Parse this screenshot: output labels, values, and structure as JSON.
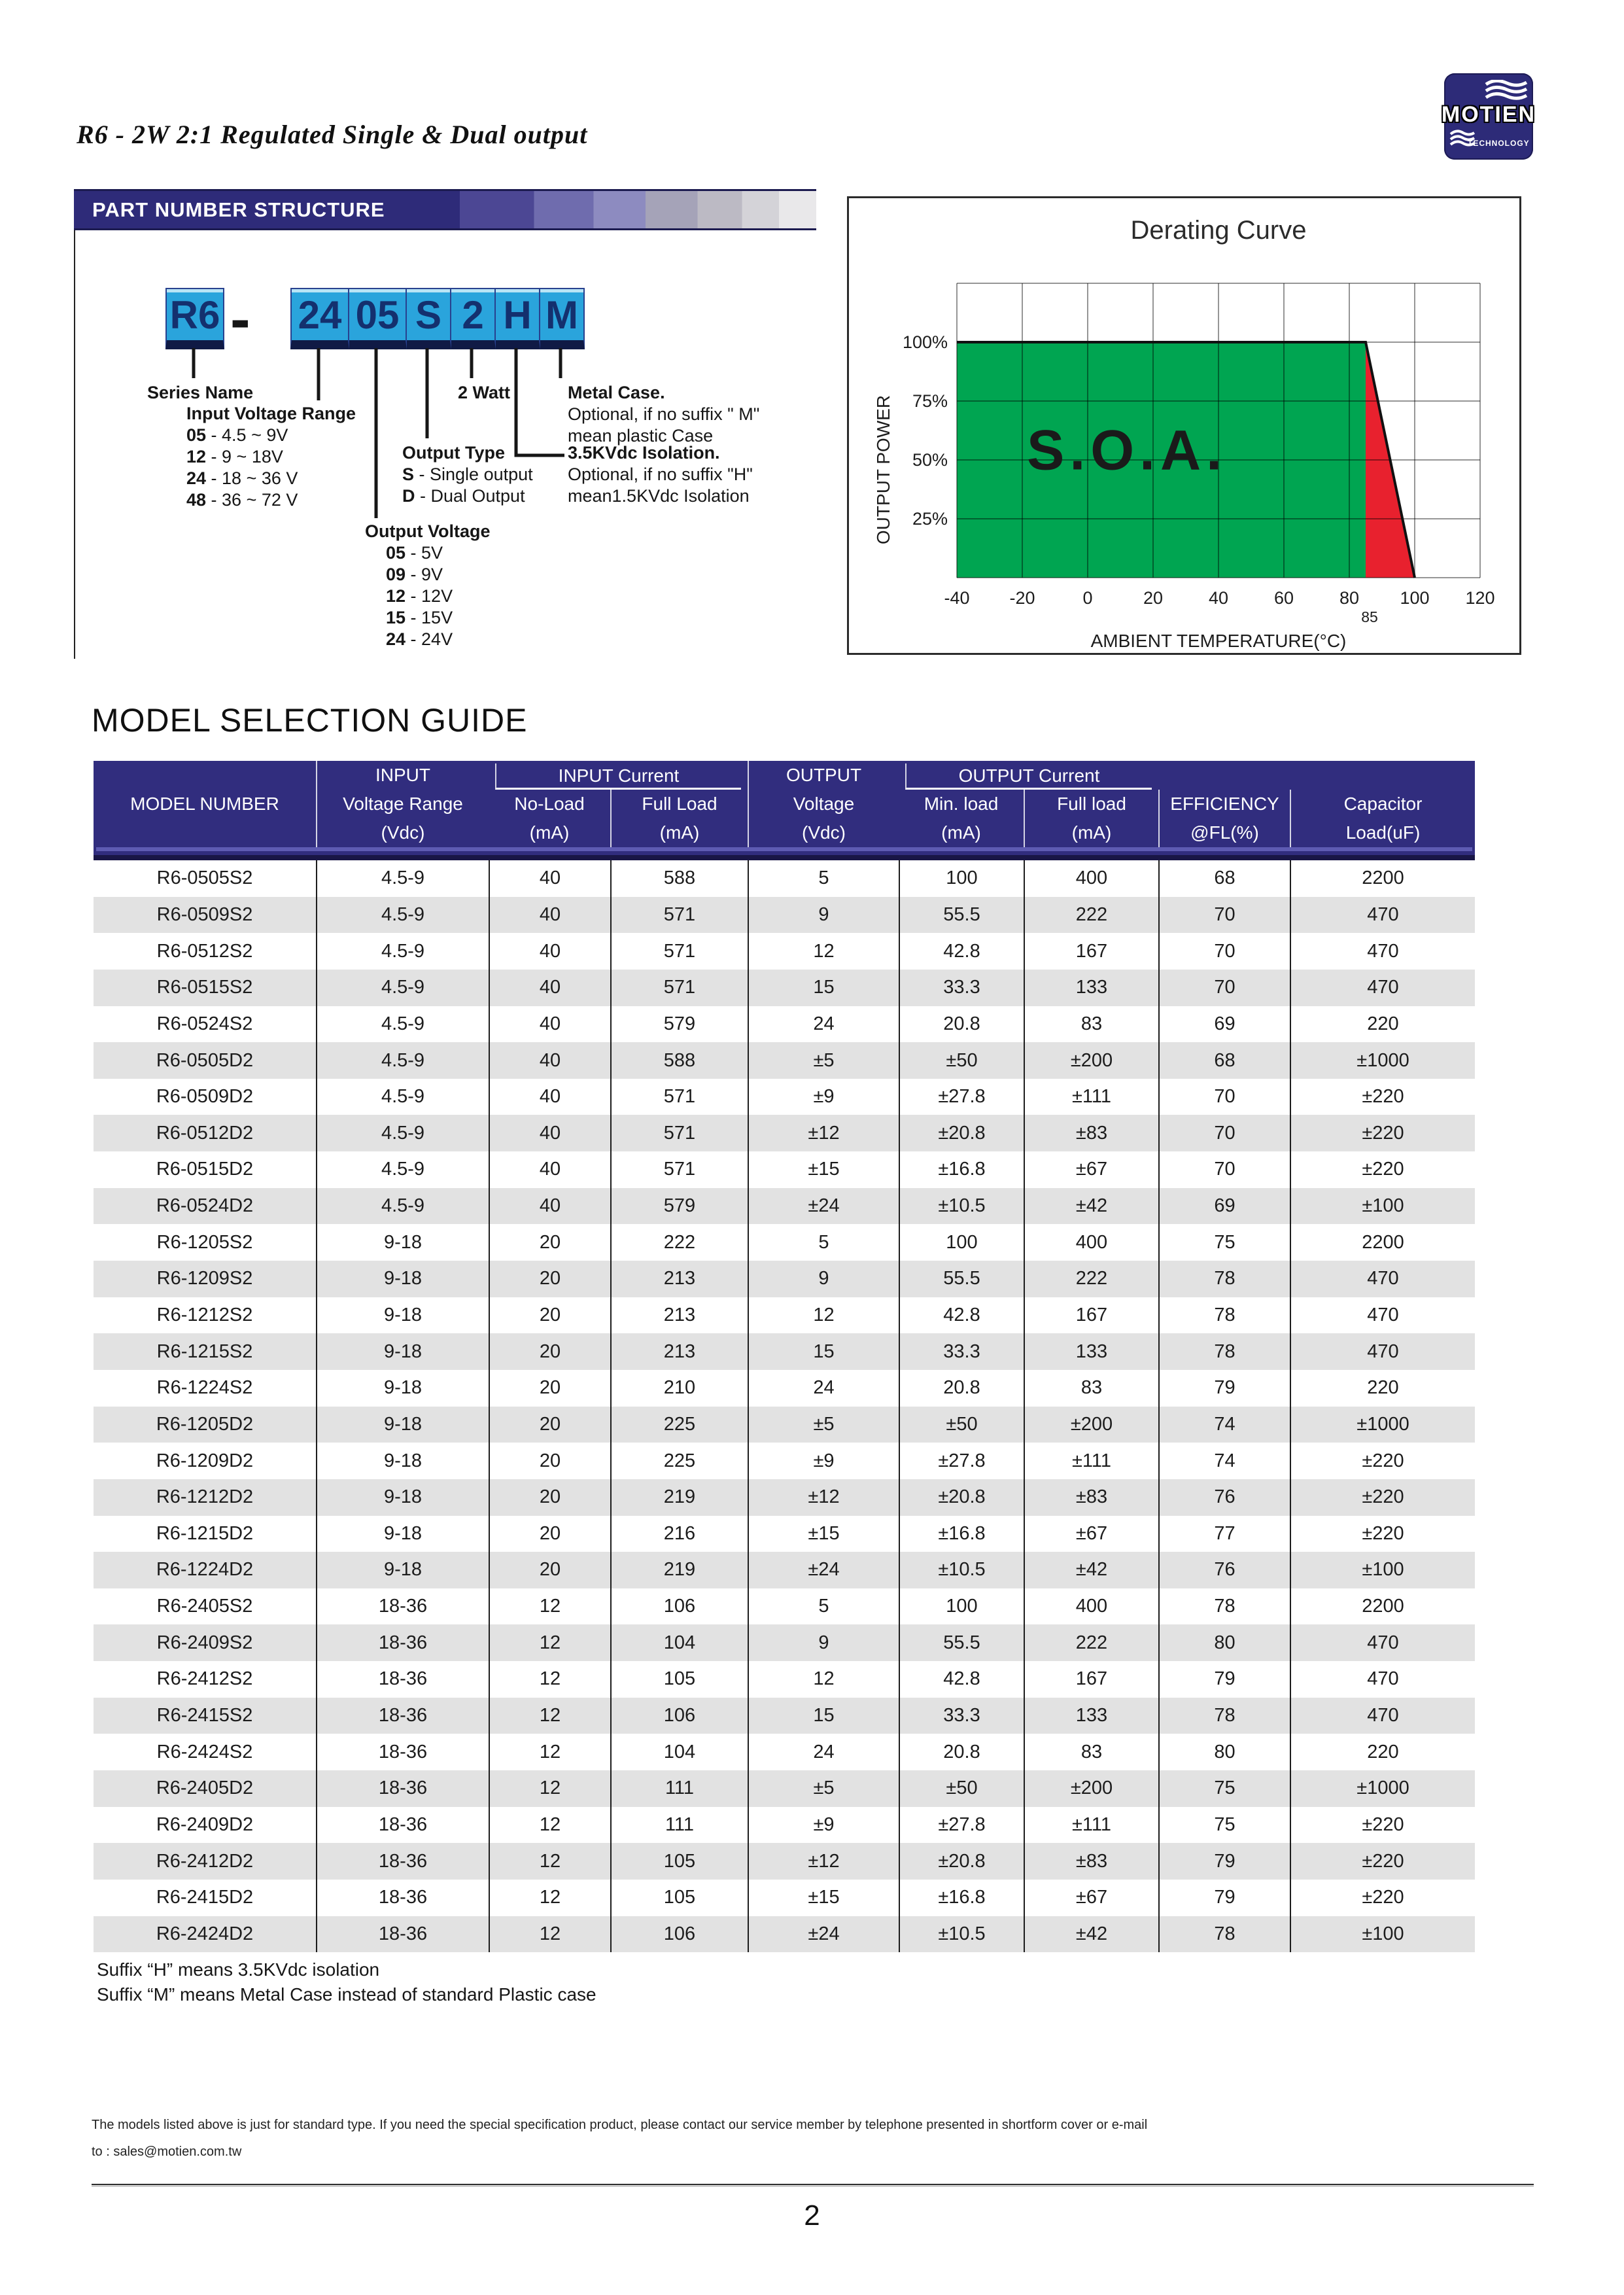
{
  "page": {
    "title": "R6 - 2W 2:1 Regulated Single & Dual output",
    "page_number": "2",
    "fineprint_line1": "The models listed above is just for standard type. If you need the special specification product, please contact our service member by telephone presented in shortform cover or e-mail",
    "fineprint_line2": "to : sales@motien.com.tw"
  },
  "logo": {
    "name": "MOTIEN",
    "sub": "TECHNOLOGY"
  },
  "part_number": {
    "header": "PART NUMBER STRUCTURE",
    "boxes": [
      "R6",
      "24",
      "05",
      "S",
      "2",
      "H",
      "M"
    ],
    "separator": "-",
    "series_name_label": "Series Name",
    "watt_label": "2 Watt",
    "input_voltage": {
      "title": "Input Voltage Range",
      "items": [
        {
          "code": "05",
          "desc": "4.5 ~ 9V"
        },
        {
          "code": "12",
          "desc": "9 ~ 18V"
        },
        {
          "code": "24",
          "desc": "18 ~ 36 V"
        },
        {
          "code": "48",
          "desc": "36 ~ 72 V"
        }
      ]
    },
    "output_voltage": {
      "title": "Output Voltage",
      "items": [
        {
          "code": "05",
          "desc": "5V"
        },
        {
          "code": "09",
          "desc": "9V"
        },
        {
          "code": "12",
          "desc": "12V"
        },
        {
          "code": "15",
          "desc": "15V"
        },
        {
          "code": "24",
          "desc": "24V"
        }
      ]
    },
    "output_type": {
      "title": "Output Type",
      "items": [
        {
          "code": "S",
          "desc": "Single output"
        },
        {
          "code": "D",
          "desc": "Dual Output"
        }
      ]
    },
    "metal_case": {
      "title": "Metal Case.",
      "lines": [
        "Optional, if no suffix \" M\"",
        "mean plastic Case"
      ]
    },
    "isolation": {
      "title": "3.5KVdc Isolation.",
      "lines": [
        "Optional, if no suffix \"H\"",
        "mean1.5KVdc Isolation"
      ]
    }
  },
  "chart_data": {
    "type": "area",
    "title": "Derating Curve",
    "xlabel": "AMBIENT TEMPERATURE(°C)",
    "ylabel": "OUTPUT POWER",
    "xlim": [
      -40,
      120
    ],
    "ylim": [
      0,
      125
    ],
    "x_ticks": [
      "-40",
      "-20",
      "0",
      "20",
      "40",
      "60",
      "80",
      "100",
      "120"
    ],
    "x_tick_values": [
      -40,
      -20,
      0,
      20,
      40,
      60,
      80,
      100,
      120
    ],
    "extra_x_tick": {
      "label": "85",
      "value": 85
    },
    "y_ticks": [
      "25%",
      "50%",
      "75%",
      "100%"
    ],
    "y_tick_values": [
      25,
      50,
      75,
      100
    ],
    "grid": true,
    "annotation": "S.O.A.",
    "colors": {
      "safe_area": "#00a551",
      "derate_area": "#e8212e",
      "line": "#111111"
    },
    "series": [
      {
        "name": "safe-operating-area",
        "points": [
          [
            -40,
            100
          ],
          [
            85,
            100
          ],
          [
            85,
            0
          ],
          [
            -40,
            0
          ]
        ]
      },
      {
        "name": "derating-region",
        "points": [
          [
            85,
            100
          ],
          [
            100,
            0
          ],
          [
            85,
            0
          ]
        ]
      }
    ],
    "derating_line": [
      [
        -40,
        100
      ],
      [
        85,
        100
      ],
      [
        100,
        0
      ]
    ]
  },
  "table": {
    "heading": "MODEL SELECTION GUIDE",
    "group_headers": {
      "input_current": "INPUT Current",
      "output_current": "OUTPUT Current"
    },
    "columns": [
      {
        "label": "MODEL NUMBER",
        "sub": "",
        "unit": ""
      },
      {
        "label": "INPUT",
        "sub": "Voltage Range",
        "unit": "(Vdc)"
      },
      {
        "label": "No-Load",
        "unit": "(mA)"
      },
      {
        "label": "Full Load",
        "unit": "(mA)"
      },
      {
        "label": "OUTPUT",
        "sub": "Voltage",
        "unit": "(Vdc)"
      },
      {
        "label": "Min. load",
        "unit": "(mA)"
      },
      {
        "label": "Full load",
        "unit": "(mA)"
      },
      {
        "label": "EFFICIENCY",
        "unit": "@FL(%)"
      },
      {
        "label": "Capacitor",
        "unit": "Load(uF)"
      }
    ],
    "rows": [
      [
        "R6-0505S2",
        "4.5-9",
        "40",
        "588",
        "5",
        "100",
        "400",
        "68",
        "2200"
      ],
      [
        "R6-0509S2",
        "4.5-9",
        "40",
        "571",
        "9",
        "55.5",
        "222",
        "70",
        "470"
      ],
      [
        "R6-0512S2",
        "4.5-9",
        "40",
        "571",
        "12",
        "42.8",
        "167",
        "70",
        "470"
      ],
      [
        "R6-0515S2",
        "4.5-9",
        "40",
        "571",
        "15",
        "33.3",
        "133",
        "70",
        "470"
      ],
      [
        "R6-0524S2",
        "4.5-9",
        "40",
        "579",
        "24",
        "20.8",
        "83",
        "69",
        "220"
      ],
      [
        "R6-0505D2",
        "4.5-9",
        "40",
        "588",
        "±5",
        "±50",
        "±200",
        "68",
        "±1000"
      ],
      [
        "R6-0509D2",
        "4.5-9",
        "40",
        "571",
        "±9",
        "±27.8",
        "±111",
        "70",
        "±220"
      ],
      [
        "R6-0512D2",
        "4.5-9",
        "40",
        "571",
        "±12",
        "±20.8",
        "±83",
        "70",
        "±220"
      ],
      [
        "R6-0515D2",
        "4.5-9",
        "40",
        "571",
        "±15",
        "±16.8",
        "±67",
        "70",
        "±220"
      ],
      [
        "R6-0524D2",
        "4.5-9",
        "40",
        "579",
        "±24",
        "±10.5",
        "±42",
        "69",
        "±100"
      ],
      [
        "R6-1205S2",
        "9-18",
        "20",
        "222",
        "5",
        "100",
        "400",
        "75",
        "2200"
      ],
      [
        "R6-1209S2",
        "9-18",
        "20",
        "213",
        "9",
        "55.5",
        "222",
        "78",
        "470"
      ],
      [
        "R6-1212S2",
        "9-18",
        "20",
        "213",
        "12",
        "42.8",
        "167",
        "78",
        "470"
      ],
      [
        "R6-1215S2",
        "9-18",
        "20",
        "213",
        "15",
        "33.3",
        "133",
        "78",
        "470"
      ],
      [
        "R6-1224S2",
        "9-18",
        "20",
        "210",
        "24",
        "20.8",
        "83",
        "79",
        "220"
      ],
      [
        "R6-1205D2",
        "9-18",
        "20",
        "225",
        "±5",
        "±50",
        "±200",
        "74",
        "±1000"
      ],
      [
        "R6-1209D2",
        "9-18",
        "20",
        "225",
        "±9",
        "±27.8",
        "±111",
        "74",
        "±220"
      ],
      [
        "R6-1212D2",
        "9-18",
        "20",
        "219",
        "±12",
        "±20.8",
        "±83",
        "76",
        "±220"
      ],
      [
        "R6-1215D2",
        "9-18",
        "20",
        "216",
        "±15",
        "±16.8",
        "±67",
        "77",
        "±220"
      ],
      [
        "R6-1224D2",
        "9-18",
        "20",
        "219",
        "±24",
        "±10.5",
        "±42",
        "76",
        "±100"
      ],
      [
        "R6-2405S2",
        "18-36",
        "12",
        "106",
        "5",
        "100",
        "400",
        "78",
        "2200"
      ],
      [
        "R6-2409S2",
        "18-36",
        "12",
        "104",
        "9",
        "55.5",
        "222",
        "80",
        "470"
      ],
      [
        "R6-2412S2",
        "18-36",
        "12",
        "105",
        "12",
        "42.8",
        "167",
        "79",
        "470"
      ],
      [
        "R6-2415S2",
        "18-36",
        "12",
        "106",
        "15",
        "33.3",
        "133",
        "78",
        "470"
      ],
      [
        "R6-2424S2",
        "18-36",
        "12",
        "104",
        "24",
        "20.8",
        "83",
        "80",
        "220"
      ],
      [
        "R6-2405D2",
        "18-36",
        "12",
        "111",
        "±5",
        "±50",
        "±200",
        "75",
        "±1000"
      ],
      [
        "R6-2409D2",
        "18-36",
        "12",
        "111",
        "±9",
        "±27.8",
        "±111",
        "75",
        "±220"
      ],
      [
        "R6-2412D2",
        "18-36",
        "12",
        "105",
        "±12",
        "±20.8",
        "±83",
        "79",
        "±220"
      ],
      [
        "R6-2415D2",
        "18-36",
        "12",
        "105",
        "±15",
        "±16.8",
        "±67",
        "79",
        "±220"
      ],
      [
        "R6-2424D2",
        "18-36",
        "12",
        "106",
        "±24",
        "±10.5",
        "±42",
        "78",
        "±100"
      ]
    ]
  },
  "notes": [
    "Suffix “H” means 3.5KVdc isolation",
    "Suffix “M” means Metal Case instead of standard Plastic case"
  ]
}
